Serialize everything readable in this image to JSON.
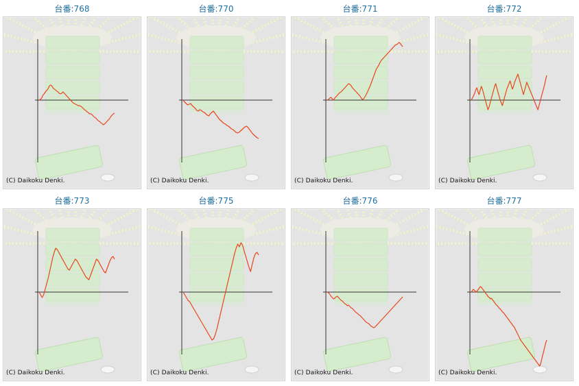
{
  "colors": {
    "line": "#e8451a",
    "axis": "#333333",
    "title": "#1f6fa0",
    "panel_bg": "#e4e4e4"
  },
  "chart_data": [
    {
      "type": "line",
      "title": "台番:768",
      "copyright": "(C) Daikoku Denki.",
      "values": [
        0,
        1,
        3,
        7,
        9,
        12,
        14,
        16,
        20,
        22,
        21,
        18,
        16,
        15,
        13,
        12,
        10,
        9,
        10,
        12,
        10,
        8,
        6,
        4,
        2,
        0,
        -2,
        -4,
        -5,
        -6,
        -7,
        -8,
        -8,
        -9,
        -10,
        -12,
        -14,
        -15,
        -17,
        -18,
        -20,
        -20,
        -21,
        -23,
        -25,
        -26,
        -28,
        -30,
        -31,
        -33,
        -34,
        -36,
        -35,
        -33,
        -31,
        -29,
        -27,
        -24,
        -22,
        -20,
        -19
      ]
    },
    {
      "type": "line",
      "title": "台番:770",
      "copyright": "(C) Daikoku Denki.",
      "values": [
        0,
        -3,
        -5,
        -7,
        -6,
        -5,
        -8,
        -10,
        -12,
        -15,
        -16,
        -14,
        -15,
        -17,
        -18,
        -20,
        -22,
        -23,
        -20,
        -18,
        -16,
        -19,
        -22,
        -25,
        -28,
        -30,
        -32,
        -34,
        -35,
        -37,
        -38,
        -40,
        -42,
        -43,
        -45,
        -47,
        -48,
        -47,
        -45,
        -43,
        -41,
        -39,
        -38,
        -40,
        -43,
        -46,
        -49,
        -51,
        -53,
        -55,
        -56
      ]
    },
    {
      "type": "line",
      "title": "台番:771",
      "copyright": "(C) Daikoku Denki.",
      "values": [
        0,
        1,
        3,
        4,
        2,
        0,
        3,
        5,
        7,
        9,
        11,
        12,
        14,
        16,
        18,
        20,
        22,
        24,
        23,
        21,
        18,
        16,
        14,
        12,
        10,
        8,
        6,
        3,
        1,
        2,
        5,
        8,
        12,
        16,
        20,
        25,
        30,
        35,
        40,
        45,
        48,
        51,
        55,
        58,
        60,
        62,
        64,
        66,
        68,
        70,
        72,
        74,
        76,
        78,
        80,
        81,
        82,
        84,
        83,
        80,
        78
      ]
    },
    {
      "type": "line",
      "title": "台番:772",
      "copyright": "(C) Daikoku Denki.",
      "values": [
        0,
        3,
        6,
        10,
        15,
        18,
        12,
        8,
        14,
        20,
        16,
        10,
        4,
        -2,
        -8,
        -14,
        -10,
        -4,
        2,
        8,
        14,
        20,
        24,
        18,
        12,
        6,
        0,
        -4,
        -8,
        -2,
        4,
        10,
        16,
        20,
        24,
        28,
        22,
        16,
        20,
        26,
        30,
        34,
        38,
        32,
        26,
        20,
        14,
        8,
        14,
        20,
        26,
        22,
        18,
        14,
        10,
        6,
        2,
        -2,
        -6,
        -10,
        -14,
        -8,
        -2,
        4,
        10,
        16,
        22,
        30,
        36
      ]
    },
    {
      "type": "line",
      "title": "台番:773",
      "copyright": "(C) Daikoku Denki.",
      "values": [
        0,
        -4,
        -8,
        -4,
        4,
        12,
        20,
        30,
        40,
        50,
        58,
        64,
        62,
        58,
        54,
        50,
        46,
        42,
        38,
        34,
        32,
        36,
        40,
        44,
        48,
        46,
        42,
        38,
        34,
        30,
        26,
        22,
        20,
        18,
        24,
        30,
        36,
        42,
        48,
        46,
        42,
        38,
        34,
        30,
        28,
        34,
        40,
        46,
        50,
        52,
        48
      ]
    },
    {
      "type": "line",
      "title": "台番:775",
      "copyright": "(C) Daikoku Denki.",
      "values": [
        0,
        -4,
        -8,
        -12,
        -14,
        -18,
        -22,
        -26,
        -30,
        -34,
        -38,
        -42,
        -46,
        -50,
        -54,
        -58,
        -62,
        -66,
        -70,
        -68,
        -62,
        -54,
        -44,
        -34,
        -24,
        -14,
        -4,
        6,
        16,
        26,
        36,
        46,
        56,
        64,
        70,
        66,
        72,
        68,
        60,
        52,
        44,
        36,
        30,
        40,
        50,
        56,
        58,
        54
      ]
    },
    {
      "type": "line",
      "title": "台番:776",
      "copyright": "(C) Daikoku Denki.",
      "values": [
        0,
        -1,
        -3,
        -6,
        -8,
        -10,
        -9,
        -7,
        -6,
        -8,
        -10,
        -12,
        -13,
        -15,
        -17,
        -18,
        -20,
        -19,
        -21,
        -23,
        -24,
        -26,
        -28,
        -30,
        -31,
        -33,
        -34,
        -36,
        -38,
        -40,
        -42,
        -44,
        -45,
        -46,
        -48,
        -50,
        -51,
        -52,
        -51,
        -49,
        -47,
        -45,
        -43,
        -41,
        -39,
        -37,
        -35,
        -33,
        -31,
        -29,
        -27,
        -25,
        -23,
        -21,
        -19,
        -17,
        -15,
        -13,
        -11,
        -9,
        -7
      ]
    },
    {
      "type": "line",
      "title": "台番:777",
      "copyright": "(C) Daikoku Denki.",
      "values": [
        0,
        2,
        4,
        3,
        1,
        0,
        2,
        4,
        6,
        8,
        7,
        5,
        3,
        1,
        -1,
        -3,
        -5,
        -7,
        -8,
        -10,
        -9,
        -11,
        -13,
        -15,
        -17,
        -19,
        -20,
        -22,
        -24,
        -25,
        -27,
        -29,
        -30,
        -32,
        -34,
        -36,
        -38,
        -40,
        -42,
        -44,
        -46,
        -48,
        -50,
        -52,
        -55,
        -58,
        -61,
        -64,
        -67,
        -70,
        -72,
        -74,
        -76,
        -78,
        -80,
        -82,
        -84,
        -86,
        -88,
        -90,
        -92,
        -94,
        -96,
        -98,
        -100,
        -102,
        -104,
        -106,
        -108,
        -104,
        -98,
        -92,
        -86,
        -80,
        -74,
        -70
      ]
    }
  ]
}
